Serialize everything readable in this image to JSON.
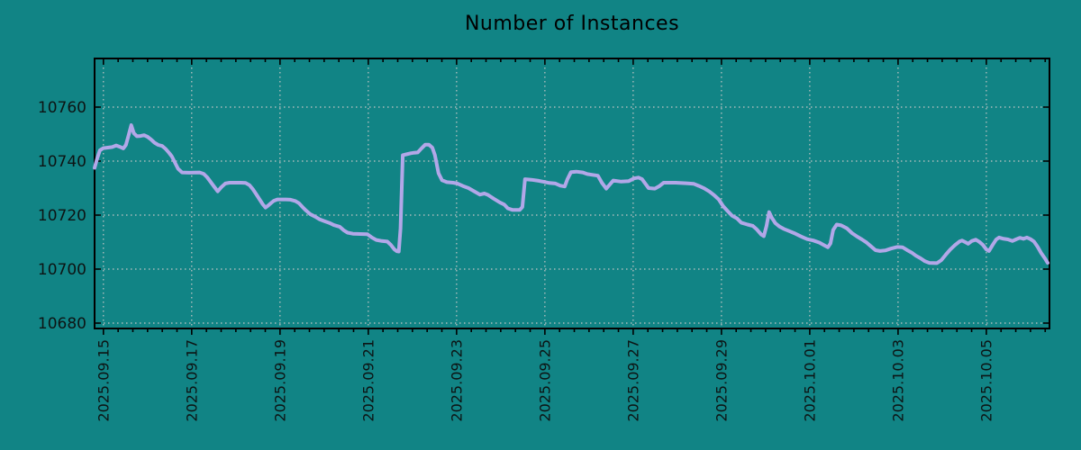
{
  "chart_data": {
    "type": "line",
    "title": "Number of Instances",
    "legend": "none",
    "grid": "dotted",
    "colors": {
      "background": "#118485",
      "line": "#b2a7e8",
      "grid": "#c6c6c6",
      "axis": "#000000",
      "text": "#0d1414"
    },
    "x_axis": {
      "label": "",
      "tick_labels": [
        "2025.09.15",
        "2025.09.17",
        "2025.09.19",
        "2025.09.21",
        "2025.09.23",
        "2025.09.25",
        "2025.09.27",
        "2025.09.29",
        "2025.10.01",
        "2025.10.03",
        "2025.10.05"
      ],
      "tick_positions_days": [
        0,
        2,
        4,
        6,
        8,
        10,
        12,
        14,
        16,
        18,
        20
      ],
      "minor_tick_interval_days": 0.33333,
      "range_days": [
        -0.2,
        21.43
      ]
    },
    "y_axis": {
      "label": "",
      "ticks": [
        10680,
        10700,
        10720,
        10740,
        10760
      ],
      "range": [
        10678,
        10778
      ]
    },
    "series": [
      {
        "name": "instances",
        "color": "#b2a7e8",
        "points_day_value": [
          [
            -0.2,
            10737.5
          ],
          [
            -0.14,
            10741
          ],
          [
            -0.08,
            10744
          ],
          [
            0,
            10744.8
          ],
          [
            0.1,
            10745
          ],
          [
            0.2,
            10745.2
          ],
          [
            0.29,
            10745.8
          ],
          [
            0.37,
            10745.3
          ],
          [
            0.45,
            10744.7
          ],
          [
            0.51,
            10746
          ],
          [
            0.57,
            10749.5
          ],
          [
            0.63,
            10753.3
          ],
          [
            0.69,
            10750.3
          ],
          [
            0.76,
            10749.2
          ],
          [
            0.84,
            10749.3
          ],
          [
            0.92,
            10749.6
          ],
          [
            1,
            10749
          ],
          [
            1.08,
            10748
          ],
          [
            1.16,
            10746.8
          ],
          [
            1.24,
            10746
          ],
          [
            1.33,
            10745.6
          ],
          [
            1.41,
            10744.5
          ],
          [
            1.49,
            10743
          ],
          [
            1.55,
            10741.7
          ],
          [
            1.61,
            10739.8
          ],
          [
            1.69,
            10737.2
          ],
          [
            1.78,
            10735.8
          ],
          [
            1.94,
            10735.7
          ],
          [
            2.18,
            10735.8
          ],
          [
            2.27,
            10735.3
          ],
          [
            2.35,
            10734
          ],
          [
            2.51,
            10730.5
          ],
          [
            2.59,
            10728.8
          ],
          [
            2.67,
            10730.3
          ],
          [
            2.76,
            10731.7
          ],
          [
            2.86,
            10732
          ],
          [
            3.12,
            10732
          ],
          [
            3.22,
            10731.9
          ],
          [
            3.31,
            10731.1
          ],
          [
            3.39,
            10729.5
          ],
          [
            3.47,
            10727.5
          ],
          [
            3.53,
            10726
          ],
          [
            3.61,
            10724
          ],
          [
            3.67,
            10722.8
          ],
          [
            3.73,
            10723.5
          ],
          [
            3.8,
            10724.5
          ],
          [
            3.86,
            10725.3
          ],
          [
            3.94,
            10725.8
          ],
          [
            4.14,
            10725.8
          ],
          [
            4.24,
            10725.7
          ],
          [
            4.35,
            10725.2
          ],
          [
            4.43,
            10724.4
          ],
          [
            4.51,
            10723
          ],
          [
            4.59,
            10721.7
          ],
          [
            4.69,
            10720.3
          ],
          [
            4.8,
            10719.4
          ],
          [
            4.9,
            10718.4
          ],
          [
            5,
            10717.8
          ],
          [
            5.12,
            10717.1
          ],
          [
            5.22,
            10716.3
          ],
          [
            5.35,
            10715.7
          ],
          [
            5.45,
            10714.3
          ],
          [
            5.53,
            10713.5
          ],
          [
            5.65,
            10713.1
          ],
          [
            5.82,
            10713
          ],
          [
            5.98,
            10712.9
          ],
          [
            6.08,
            10711.7
          ],
          [
            6.18,
            10710.8
          ],
          [
            6.31,
            10710.4
          ],
          [
            6.43,
            10710.2
          ],
          [
            6.51,
            10709
          ],
          [
            6.59,
            10707.3
          ],
          [
            6.65,
            10706.6
          ],
          [
            6.69,
            10706.5
          ],
          [
            6.73,
            10715
          ],
          [
            6.78,
            10742.2
          ],
          [
            6.86,
            10742.5
          ],
          [
            6.96,
            10742.9
          ],
          [
            7.04,
            10743.1
          ],
          [
            7.12,
            10743.2
          ],
          [
            7.2,
            10744.6
          ],
          [
            7.29,
            10746.1
          ],
          [
            7.37,
            10746.1
          ],
          [
            7.45,
            10745
          ],
          [
            7.51,
            10742.2
          ],
          [
            7.59,
            10735.5
          ],
          [
            7.67,
            10732.9
          ],
          [
            7.78,
            10732.2
          ],
          [
            7.92,
            10732
          ],
          [
            8.02,
            10731.7
          ],
          [
            8.14,
            10730.8
          ],
          [
            8.27,
            10730
          ],
          [
            8.41,
            10728.7
          ],
          [
            8.53,
            10727.6
          ],
          [
            8.63,
            10728
          ],
          [
            8.71,
            10727.5
          ],
          [
            8.84,
            10726.1
          ],
          [
            8.98,
            10724.7
          ],
          [
            9.08,
            10723.9
          ],
          [
            9.16,
            10722.5
          ],
          [
            9.27,
            10721.9
          ],
          [
            9.43,
            10721.9
          ],
          [
            9.49,
            10723
          ],
          [
            9.55,
            10733.3
          ],
          [
            9.69,
            10733.1
          ],
          [
            9.86,
            10732.7
          ],
          [
            9.98,
            10732.3
          ],
          [
            10.1,
            10731.9
          ],
          [
            10.24,
            10731.7
          ],
          [
            10.35,
            10730.9
          ],
          [
            10.45,
            10730.6
          ],
          [
            10.51,
            10733.3
          ],
          [
            10.59,
            10735.9
          ],
          [
            10.71,
            10736.1
          ],
          [
            10.86,
            10735.8
          ],
          [
            10.96,
            10735.2
          ],
          [
            11.08,
            10734.9
          ],
          [
            11.2,
            10734.6
          ],
          [
            11.29,
            10732
          ],
          [
            11.39,
            10729.8
          ],
          [
            11.47,
            10731.3
          ],
          [
            11.55,
            10732.8
          ],
          [
            11.73,
            10732.4
          ],
          [
            11.9,
            10732.6
          ],
          [
            12.02,
            10733.6
          ],
          [
            12.12,
            10733.9
          ],
          [
            12.2,
            10733.3
          ],
          [
            12.29,
            10731.3
          ],
          [
            12.35,
            10730
          ],
          [
            12.49,
            10729.8
          ],
          [
            12.59,
            10730.7
          ],
          [
            12.69,
            10732
          ],
          [
            12.96,
            10732
          ],
          [
            13.2,
            10731.8
          ],
          [
            13.37,
            10731.6
          ],
          [
            13.49,
            10730.8
          ],
          [
            13.61,
            10729.9
          ],
          [
            13.73,
            10728.7
          ],
          [
            13.84,
            10727.3
          ],
          [
            13.94,
            10725.8
          ],
          [
            14.04,
            10723.3
          ],
          [
            14.14,
            10721.5
          ],
          [
            14.24,
            10719.8
          ],
          [
            14.35,
            10718.8
          ],
          [
            14.45,
            10717.2
          ],
          [
            14.59,
            10716.5
          ],
          [
            14.71,
            10716
          ],
          [
            14.8,
            10714.7
          ],
          [
            14.9,
            10712.8
          ],
          [
            14.96,
            10712.2
          ],
          [
            15.02,
            10716
          ],
          [
            15.08,
            10721.1
          ],
          [
            15.14,
            10719
          ],
          [
            15.22,
            10717
          ],
          [
            15.31,
            10715.8
          ],
          [
            15.41,
            10714.9
          ],
          [
            15.53,
            10714.1
          ],
          [
            15.65,
            10713.3
          ],
          [
            15.8,
            10712.1
          ],
          [
            15.94,
            10711.1
          ],
          [
            16.08,
            10710.6
          ],
          [
            16.22,
            10709.8
          ],
          [
            16.33,
            10708.8
          ],
          [
            16.41,
            10708.1
          ],
          [
            16.47,
            10709.5
          ],
          [
            16.53,
            10714.5
          ],
          [
            16.61,
            10716.5
          ],
          [
            16.71,
            10716.2
          ],
          [
            16.84,
            10715.1
          ],
          [
            16.96,
            10713.3
          ],
          [
            17.06,
            10712.2
          ],
          [
            17.18,
            10711
          ],
          [
            17.29,
            10709.8
          ],
          [
            17.39,
            10708.4
          ],
          [
            17.49,
            10707
          ],
          [
            17.59,
            10706.7
          ],
          [
            17.71,
            10706.9
          ],
          [
            17.84,
            10707.6
          ],
          [
            17.98,
            10708.2
          ],
          [
            18.1,
            10708.1
          ],
          [
            18.2,
            10707.1
          ],
          [
            18.31,
            10706.1
          ],
          [
            18.41,
            10704.9
          ],
          [
            18.51,
            10704
          ],
          [
            18.61,
            10702.9
          ],
          [
            18.71,
            10702.3
          ],
          [
            18.88,
            10702.2
          ],
          [
            18.98,
            10703.3
          ],
          [
            19.08,
            10705.3
          ],
          [
            19.18,
            10707.2
          ],
          [
            19.29,
            10708.9
          ],
          [
            19.39,
            10710.2
          ],
          [
            19.45,
            10710.6
          ],
          [
            19.53,
            10709.9
          ],
          [
            19.59,
            10709.4
          ],
          [
            19.67,
            10710.4
          ],
          [
            19.76,
            10710.9
          ],
          [
            19.84,
            10710.1
          ],
          [
            19.92,
            10709
          ],
          [
            20,
            10707.3
          ],
          [
            20.06,
            10706.7
          ],
          [
            20.14,
            10708.9
          ],
          [
            20.22,
            10710.9
          ],
          [
            20.29,
            10711.7
          ],
          [
            20.37,
            10711.3
          ],
          [
            20.49,
            10711
          ],
          [
            20.59,
            10710.4
          ],
          [
            20.67,
            10711
          ],
          [
            20.76,
            10711.6
          ],
          [
            20.84,
            10711.2
          ],
          [
            20.92,
            10711.7
          ],
          [
            21,
            10711.1
          ],
          [
            21.08,
            10710.2
          ],
          [
            21.16,
            10708.3
          ],
          [
            21.24,
            10706
          ],
          [
            21.33,
            10703.9
          ],
          [
            21.39,
            10702.3
          ]
        ]
      }
    ]
  }
}
